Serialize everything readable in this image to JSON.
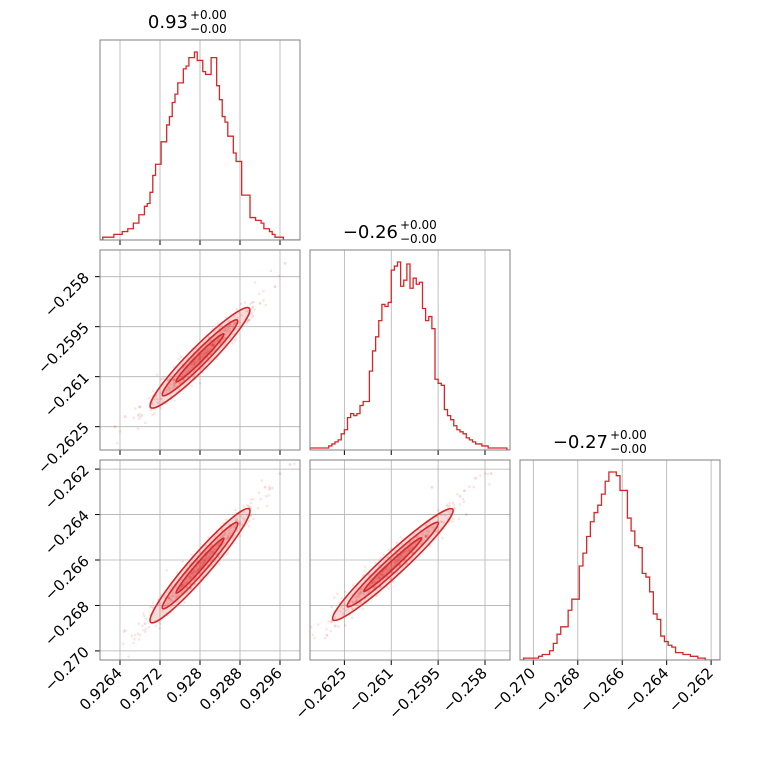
{
  "colors": {
    "series": "#d62728",
    "frame": "#808080",
    "grid": "#b0b0b0"
  },
  "chart_data": [
    {
      "type": "histogram",
      "panel": "p00",
      "title": {
        "main": "0.93",
        "sup": "+0.00",
        "sub": "−0.00"
      },
      "xlim": [
        0.926,
        0.93
      ],
      "x_ticks": [
        0.9264,
        0.9272,
        0.928,
        0.9288,
        0.9296
      ],
      "bin_edges_range": [
        0.926,
        0.93
      ],
      "counts": [
        0,
        1,
        1,
        1,
        1,
        2,
        2,
        2,
        3,
        3,
        4,
        4,
        6,
        6,
        9,
        9,
        12,
        13,
        17,
        23,
        27,
        27,
        35,
        35,
        41,
        44,
        49,
        52,
        56,
        56,
        61,
        62,
        65,
        65,
        67,
        64,
        64,
        60,
        59,
        59,
        65,
        65,
        55,
        50,
        44,
        42,
        37,
        37,
        31,
        28,
        28,
        16,
        16,
        16,
        8,
        8,
        7,
        7,
        6,
        4,
        4,
        3,
        2,
        1,
        1,
        1,
        0,
        0,
        0,
        0,
        0,
        0
      ]
    },
    {
      "type": "histogram",
      "panel": "p11",
      "title": {
        "main": "−0.26",
        "sup": "+0.00",
        "sub": "−0.00"
      },
      "xlim": [
        -0.2636,
        -0.2572
      ],
      "x_ticks": [
        -0.2625,
        -0.261,
        -0.2595,
        -0.258
      ],
      "bin_edges_range": [
        -0.2636,
        -0.2572
      ],
      "counts": [
        1,
        1,
        1,
        1,
        1,
        1,
        2,
        3,
        4,
        5,
        8,
        10,
        16,
        18,
        17,
        18,
        22,
        24,
        24,
        39,
        49,
        56,
        64,
        72,
        71,
        73,
        89,
        91,
        93,
        81,
        84,
        92,
        80,
        85,
        82,
        83,
        70,
        64,
        66,
        60,
        35,
        33,
        32,
        20,
        17,
        15,
        12,
        10,
        9,
        8,
        6,
        5,
        4,
        3,
        3,
        2,
        2,
        1,
        1,
        1,
        1,
        1,
        1,
        0
      ]
    },
    {
      "type": "histogram",
      "panel": "p22",
      "title": {
        "main": "−0.27",
        "sup": "+0.00",
        "sub": "−0.00"
      },
      "xlim": [
        -0.2706,
        -0.2616
      ],
      "x_ticks": [
        -0.27,
        -0.268,
        -0.266,
        -0.264,
        -0.262
      ],
      "bin_edges_range": [
        -0.2706,
        -0.2616
      ],
      "counts": [
        0,
        1,
        1,
        1,
        1,
        2,
        3,
        3,
        5,
        9,
        14,
        18,
        18,
        27,
        33,
        33,
        51,
        58,
        67,
        75,
        80,
        84,
        90,
        97,
        102,
        102,
        100,
        92,
        92,
        77,
        70,
        62,
        61,
        47,
        45,
        37,
        25,
        22,
        13,
        10,
        8,
        7,
        4,
        4,
        3,
        3,
        2,
        2,
        1,
        1,
        0,
        0,
        0,
        0
      ]
    },
    {
      "type": "scatter",
      "panel": "p10",
      "x_param": 0,
      "y_param": 1,
      "xlim": [
        0.926,
        0.93
      ],
      "ylim": [
        -0.2632,
        -0.2572
      ],
      "x_ticks": [
        0.9264,
        0.9272,
        0.928,
        0.9288,
        0.9296
      ],
      "y_ticks": [
        -0.2625,
        -0.261,
        -0.2595,
        -0.258
      ],
      "fit": {
        "x0": 0.92715,
        "y0": -0.26172,
        "x1": 0.92885,
        "y1": -0.25915
      },
      "outliers": [
        [
          0.9292,
          -0.2588
        ],
        [
          0.9295,
          -0.2583
        ],
        [
          0.9297,
          -0.2576
        ],
        [
          0.9265,
          -0.2622
        ],
        [
          0.9268,
          -0.2619
        ],
        [
          0.929,
          -0.2591
        ],
        [
          0.9263,
          -0.2625
        ]
      ]
    },
    {
      "type": "scatter",
      "panel": "p20",
      "x_param": 0,
      "y_param": 2,
      "xlim": [
        0.926,
        0.93
      ],
      "ylim": [
        -0.2704,
        -0.2616
      ],
      "x_ticks": [
        0.9264,
        0.9272,
        0.928,
        0.9288,
        0.9296
      ],
      "y_ticks": [
        -0.27,
        -0.268,
        -0.266,
        -0.264,
        -0.262
      ],
      "fit": {
        "x0": 0.92715,
        "y0": -0.2684,
        "x1": 0.92885,
        "y1": -0.2641
      },
      "outliers": [
        [
          0.9293,
          -0.2628
        ],
        [
          0.9296,
          -0.2622
        ],
        [
          0.9298,
          -0.2618
        ],
        [
          0.9265,
          -0.2691
        ],
        [
          0.9269,
          -0.2688
        ],
        [
          0.929,
          -0.2637
        ]
      ]
    },
    {
      "type": "scatter",
      "panel": "p21",
      "x_param": 1,
      "y_param": 2,
      "xlim": [
        -0.2636,
        -0.2572
      ],
      "ylim": [
        -0.2704,
        -0.2616
      ],
      "x_ticks": [
        -0.2625,
        -0.261,
        -0.2595,
        -0.258
      ],
      "y_ticks": [
        -0.27,
        -0.268,
        -0.266,
        -0.264,
        -0.262
      ],
      "fit": {
        "x0": -0.2626,
        "y0": -0.2683,
        "x1": -0.2593,
        "y1": -0.2641
      },
      "outliers": [
        [
          -0.2588,
          -0.2632
        ],
        [
          -0.2583,
          -0.2624
        ],
        [
          -0.2578,
          -0.2622
        ],
        [
          -0.2629,
          -0.2687
        ],
        [
          -0.2597,
          -0.2628
        ],
        [
          -0.2586,
          -0.264
        ]
      ]
    }
  ]
}
